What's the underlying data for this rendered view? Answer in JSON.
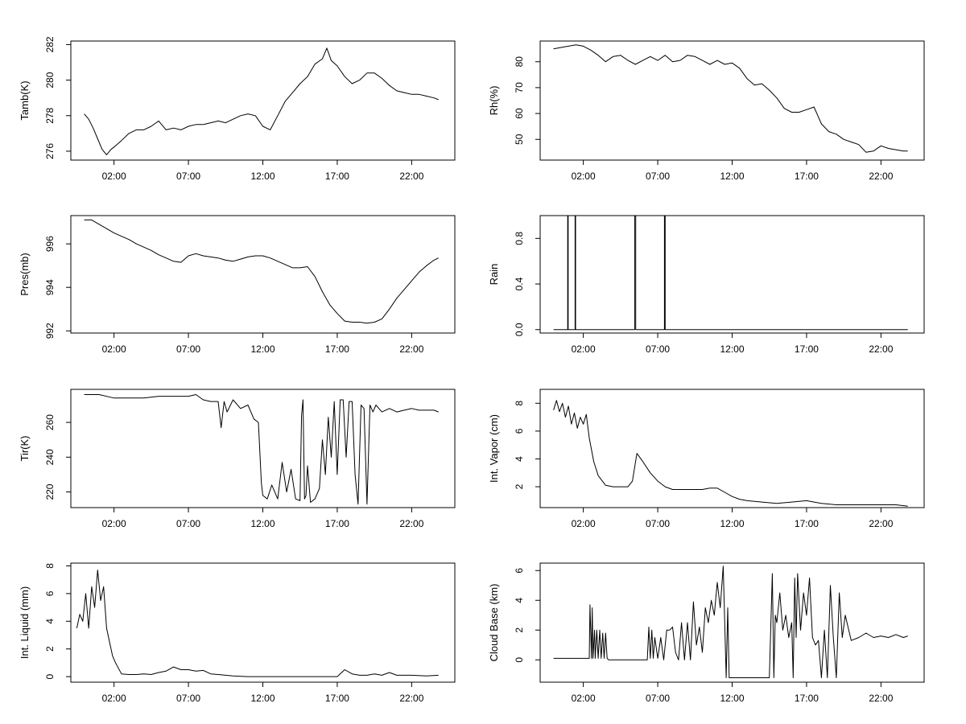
{
  "chart_data": [
    {
      "id": "tamb",
      "type": "line",
      "ylabel": "Tamb(K)",
      "x_ticks": [
        "02:00",
        "07:00",
        "12:00",
        "17:00",
        "22:00"
      ],
      "x_tick_hours": [
        2,
        7,
        12,
        17,
        22
      ],
      "xlim": [
        -0.9,
        24.9
      ],
      "y_ticks": [
        276,
        278,
        280,
        282
      ],
      "ylim": [
        275.5,
        282.2
      ],
      "series": [
        {
          "x": [
            0.0,
            0.3,
            0.6,
            0.9,
            1.2,
            1.5,
            1.8,
            2.1,
            2.5,
            3.0,
            3.5,
            4.0,
            4.5,
            5.0,
            5.5,
            6.0,
            6.5,
            7.0,
            7.5,
            8.0,
            8.5,
            9.0,
            9.5,
            10.0,
            10.5,
            11.0,
            11.5,
            12.0,
            12.5,
            13.0,
            13.5,
            14.0,
            14.5,
            15.0,
            15.5,
            16.0,
            16.3,
            16.6,
            17.0,
            17.5,
            18.0,
            18.5,
            19.0,
            19.5,
            20.0,
            20.5,
            21.0,
            21.5,
            22.0,
            22.5,
            23.0,
            23.5,
            23.8
          ],
          "values": [
            278.1,
            277.8,
            277.3,
            276.7,
            276.1,
            275.8,
            276.1,
            276.3,
            276.6,
            277.0,
            277.2,
            277.2,
            277.4,
            277.7,
            277.2,
            277.3,
            277.2,
            277.4,
            277.5,
            277.5,
            277.6,
            277.7,
            277.6,
            277.8,
            278.0,
            278.1,
            278.0,
            277.4,
            277.2,
            278.0,
            278.8,
            279.3,
            279.8,
            280.2,
            280.9,
            281.2,
            281.8,
            281.1,
            280.8,
            280.2,
            279.8,
            280.0,
            280.4,
            280.4,
            280.1,
            279.7,
            279.4,
            279.3,
            279.2,
            279.2,
            279.1,
            279.0,
            278.9
          ]
        }
      ]
    },
    {
      "id": "rh",
      "type": "line",
      "ylabel": "Rh(%)",
      "x_ticks": [
        "02:00",
        "07:00",
        "12:00",
        "17:00",
        "22:00"
      ],
      "x_tick_hours": [
        2,
        7,
        12,
        17,
        22
      ],
      "xlim": [
        -0.9,
        24.9
      ],
      "y_ticks": [
        50,
        60,
        70,
        80
      ],
      "ylim": [
        42,
        88
      ],
      "series": [
        {
          "x": [
            0.0,
            0.5,
            1.0,
            1.5,
            2.0,
            2.5,
            3.0,
            3.5,
            4.0,
            4.5,
            5.0,
            5.5,
            6.0,
            6.5,
            7.0,
            7.5,
            8.0,
            8.5,
            9.0,
            9.5,
            10.0,
            10.5,
            11.0,
            11.5,
            12.0,
            12.5,
            13.0,
            13.5,
            14.0,
            14.5,
            15.0,
            15.5,
            16.0,
            16.5,
            17.0,
            17.5,
            18.0,
            18.5,
            19.0,
            19.5,
            20.0,
            20.5,
            21.0,
            21.5,
            22.0,
            22.5,
            23.0,
            23.5,
            23.8
          ],
          "values": [
            85,
            85.5,
            86,
            86.5,
            86,
            84.5,
            82.5,
            80,
            82,
            82.5,
            80.5,
            79,
            80.5,
            82,
            80.5,
            82.5,
            80,
            80.5,
            82.5,
            82,
            80.5,
            79,
            80.5,
            79,
            79.5,
            77.5,
            73.5,
            71,
            71.5,
            69,
            66,
            62,
            60.5,
            60.5,
            61.5,
            62.5,
            56,
            53,
            52,
            50,
            49,
            48,
            45,
            45.5,
            47.5,
            46.5,
            46,
            45.5,
            45.5
          ]
        }
      ]
    },
    {
      "id": "pres",
      "type": "line",
      "ylabel": "Pres(mb)",
      "x_ticks": [
        "02:00",
        "07:00",
        "12:00",
        "17:00",
        "22:00"
      ],
      "x_tick_hours": [
        2,
        7,
        12,
        17,
        22
      ],
      "xlim": [
        -0.9,
        24.9
      ],
      "y_ticks": [
        992,
        994,
        996
      ],
      "ylim": [
        991.9,
        997.3
      ],
      "series": [
        {
          "x": [
            0.0,
            0.5,
            1.0,
            1.5,
            2.0,
            2.5,
            3.0,
            3.5,
            4.0,
            4.5,
            5.0,
            5.5,
            6.0,
            6.5,
            7.0,
            7.5,
            8.0,
            8.5,
            9.0,
            9.5,
            10.0,
            10.5,
            11.0,
            11.5,
            12.0,
            12.5,
            13.0,
            13.5,
            14.0,
            14.5,
            15.0,
            15.5,
            16.0,
            16.5,
            17.0,
            17.5,
            18.0,
            18.5,
            19.0,
            19.5,
            20.0,
            20.5,
            21.0,
            21.5,
            22.0,
            22.5,
            23.0,
            23.5,
            23.8
          ],
          "values": [
            997.1,
            997.1,
            996.9,
            996.7,
            996.5,
            996.35,
            996.2,
            996.0,
            995.85,
            995.7,
            995.5,
            995.35,
            995.2,
            995.15,
            995.45,
            995.55,
            995.45,
            995.4,
            995.35,
            995.25,
            995.2,
            995.3,
            995.4,
            995.45,
            995.45,
            995.35,
            995.2,
            995.05,
            994.9,
            994.9,
            994.95,
            994.5,
            993.8,
            993.2,
            992.8,
            992.45,
            992.4,
            992.4,
            992.35,
            992.4,
            992.55,
            993.0,
            993.5,
            993.9,
            994.3,
            994.7,
            995.0,
            995.25,
            995.35
          ]
        }
      ]
    },
    {
      "id": "rain",
      "type": "line",
      "ylabel": "Rain",
      "x_ticks": [
        "02:00",
        "07:00",
        "12:00",
        "17:00",
        "22:00"
      ],
      "x_tick_hours": [
        2,
        7,
        12,
        17,
        22
      ],
      "xlim": [
        -0.9,
        24.9
      ],
      "y_ticks": [
        "0.0",
        "0.4",
        "0.8"
      ],
      "y_tick_values": [
        0,
        0.4,
        0.8
      ],
      "ylim": [
        -0.03,
        1.0
      ],
      "series": [
        {
          "x": [
            0.0,
            0.95,
            0.95,
            0.98,
            0.98,
            1.45,
            1.45,
            1.48,
            1.48,
            5.45,
            5.45,
            5.52,
            5.52,
            7.45,
            7.45,
            7.5,
            7.5,
            23.8
          ],
          "values": [
            0,
            0,
            1,
            1,
            0,
            0,
            1,
            1,
            0,
            0,
            1,
            1,
            0,
            0,
            1,
            1,
            0,
            0
          ]
        }
      ]
    },
    {
      "id": "tir",
      "type": "line",
      "ylabel": "Tir(K)",
      "x_ticks": [
        "02:00",
        "07:00",
        "12:00",
        "17:00",
        "22:00"
      ],
      "x_tick_hours": [
        2,
        7,
        12,
        17,
        22
      ],
      "xlim": [
        -0.9,
        24.9
      ],
      "y_ticks": [
        220,
        240,
        260
      ],
      "ylim": [
        211,
        279
      ],
      "series": [
        {
          "x": [
            0.0,
            1.0,
            2.0,
            3.0,
            4.0,
            5.0,
            6.0,
            7.0,
            7.5,
            8.0,
            8.5,
            9.0,
            9.2,
            9.4,
            9.6,
            10.0,
            10.5,
            11.0,
            11.4,
            11.7,
            11.9,
            12.0,
            12.3,
            12.6,
            13.0,
            13.3,
            13.6,
            13.9,
            14.2,
            14.5,
            14.6,
            14.7,
            14.8,
            14.9,
            15.0,
            15.2,
            15.5,
            15.8,
            16.0,
            16.2,
            16.4,
            16.6,
            16.8,
            17.0,
            17.2,
            17.4,
            17.6,
            17.8,
            18.0,
            18.2,
            18.4,
            18.6,
            18.8,
            19.0,
            19.2,
            19.4,
            19.6,
            20.0,
            20.5,
            21.0,
            21.5,
            22.0,
            22.5,
            23.0,
            23.5,
            23.8
          ],
          "values": [
            276,
            276,
            274,
            274,
            274,
            275,
            275,
            275,
            276,
            273,
            272,
            272,
            257,
            272,
            266,
            273,
            268,
            270,
            262,
            260,
            225,
            218,
            216,
            224,
            216,
            237,
            220,
            233,
            216,
            215,
            264,
            273,
            216,
            218,
            235,
            214,
            216,
            222,
            250,
            230,
            263,
            240,
            272,
            230,
            273,
            273,
            240,
            272,
            272,
            230,
            213,
            270,
            268,
            213,
            270,
            266,
            270,
            266,
            268,
            266,
            267,
            268,
            267,
            267,
            267,
            266
          ]
        }
      ]
    },
    {
      "id": "vapor",
      "type": "line",
      "ylabel": "Int. Vapor (cm)",
      "x_ticks": [
        "02:00",
        "07:00",
        "12:00",
        "17:00",
        "22:00"
      ],
      "x_tick_hours": [
        2,
        7,
        12,
        17,
        22
      ],
      "xlim": [
        -0.9,
        24.9
      ],
      "y_ticks": [
        2,
        4,
        6,
        8
      ],
      "ylim": [
        0.5,
        9.0
      ],
      "series": [
        {
          "x": [
            0.0,
            0.2,
            0.4,
            0.6,
            0.8,
            1.0,
            1.2,
            1.4,
            1.6,
            1.8,
            2.0,
            2.2,
            2.4,
            2.7,
            3.0,
            3.5,
            4.0,
            4.5,
            5.0,
            5.3,
            5.6,
            6.0,
            6.5,
            7.0,
            7.5,
            8.0,
            9.0,
            10.0,
            10.5,
            11.0,
            11.5,
            12.0,
            12.5,
            13.0,
            14.0,
            15.0,
            16.0,
            17.0,
            17.5,
            18.0,
            19.0,
            20.0,
            21.0,
            22.0,
            23.0,
            23.8
          ],
          "values": [
            7.5,
            8.2,
            7.4,
            8.0,
            7.0,
            7.8,
            6.5,
            7.3,
            6.2,
            7.0,
            6.5,
            7.2,
            5.5,
            3.8,
            2.8,
            2.1,
            2.0,
            2.0,
            2.0,
            2.4,
            4.4,
            3.8,
            3.0,
            2.4,
            2.0,
            1.8,
            1.8,
            1.8,
            1.9,
            1.9,
            1.6,
            1.3,
            1.1,
            1.0,
            0.9,
            0.8,
            0.9,
            1.0,
            0.9,
            0.8,
            0.7,
            0.7,
            0.7,
            0.7,
            0.7,
            0.6
          ]
        }
      ]
    },
    {
      "id": "liquid",
      "type": "line",
      "ylabel": "Int. Liquid (mm)",
      "x_ticks": [
        "02:00",
        "07:00",
        "12:00",
        "17:00",
        "22:00"
      ],
      "x_tick_hours": [
        2,
        7,
        12,
        17,
        22
      ],
      "xlim": [
        -0.9,
        24.9
      ],
      "y_ticks": [
        0,
        2,
        4,
        6,
        8
      ],
      "ylim": [
        -0.4,
        8.2
      ],
      "series": [
        {
          "x": [
            -0.5,
            -0.3,
            -0.1,
            0.1,
            0.3,
            0.5,
            0.7,
            0.9,
            1.1,
            1.3,
            1.5,
            1.7,
            1.9,
            2.1,
            2.3,
            2.5,
            3.0,
            3.5,
            4.0,
            4.5,
            5.0,
            5.5,
            6.0,
            6.5,
            7.0,
            7.5,
            8.0,
            8.5,
            9.0,
            9.5,
            10.0,
            11.0,
            12.0,
            13.0,
            14.0,
            15.0,
            16.0,
            17.0,
            17.5,
            18.0,
            18.5,
            19.0,
            19.5,
            20.0,
            20.5,
            21.0,
            22.0,
            23.0,
            23.8
          ],
          "values": [
            3.5,
            4.5,
            4.0,
            6.0,
            3.5,
            6.5,
            5.0,
            7.7,
            5.5,
            6.5,
            3.5,
            2.5,
            1.5,
            1.0,
            0.6,
            0.2,
            0.15,
            0.15,
            0.2,
            0.15,
            0.3,
            0.4,
            0.7,
            0.5,
            0.5,
            0.4,
            0.45,
            0.2,
            0.15,
            0.1,
            0.05,
            0.0,
            0.0,
            0.0,
            0.0,
            0.0,
            0.0,
            0.0,
            0.5,
            0.2,
            0.1,
            0.1,
            0.2,
            0.1,
            0.3,
            0.1,
            0.1,
            0.05,
            0.1
          ]
        }
      ]
    },
    {
      "id": "cloud",
      "type": "line",
      "ylabel": "Cloud Base (km)",
      "x_ticks": [
        "02:00",
        "07:00",
        "12:00",
        "17:00",
        "22:00"
      ],
      "x_tick_hours": [
        2,
        7,
        12,
        17,
        22
      ],
      "xlim": [
        -0.9,
        24.9
      ],
      "y_ticks": [
        0,
        2,
        4,
        6
      ],
      "ylim": [
        -1.5,
        6.5
      ],
      "series": [
        {
          "x": [
            0.0,
            1.0,
            2.0,
            2.4,
            2.45,
            2.55,
            2.6,
            2.65,
            2.75,
            2.8,
            2.9,
            3.0,
            3.1,
            3.2,
            3.3,
            3.4,
            3.5,
            3.6,
            3.7,
            4.0,
            5.0,
            6.0,
            6.3,
            6.4,
            6.5,
            6.6,
            6.7,
            6.8,
            7.0,
            7.2,
            7.4,
            7.6,
            7.8,
            8.0,
            8.2,
            8.4,
            8.6,
            8.8,
            9.0,
            9.2,
            9.4,
            9.6,
            9.8,
            10.0,
            10.2,
            10.4,
            10.6,
            10.8,
            11.0,
            11.2,
            11.4,
            11.6,
            11.7,
            11.8,
            11.9,
            12.0,
            12.5,
            13.0,
            13.5,
            14.0,
            14.5,
            14.7,
            14.8,
            14.9,
            15.0,
            15.2,
            15.4,
            15.6,
            15.8,
            16.0,
            16.1,
            16.2,
            16.3,
            16.4,
            16.6,
            16.8,
            17.0,
            17.2,
            17.4,
            17.6,
            17.8,
            18.0,
            18.2,
            18.4,
            18.6,
            18.8,
            19.0,
            19.2,
            19.4,
            19.6,
            20.0,
            20.5,
            21.0,
            21.5,
            22.0,
            22.5,
            23.0,
            23.5,
            23.8
          ],
          "values": [
            0.1,
            0.1,
            0.1,
            0.1,
            3.7,
            0.1,
            3.5,
            0.1,
            2.0,
            0.1,
            2.0,
            0.1,
            2.0,
            0.1,
            1.8,
            0.1,
            1.8,
            0.1,
            0.0,
            0.0,
            0.0,
            0.0,
            0.0,
            2.2,
            0.1,
            2.0,
            0.1,
            1.5,
            0.1,
            1.5,
            0.0,
            2.0,
            2.0,
            2.2,
            0.5,
            0.0,
            2.5,
            0.0,
            2.5,
            0.0,
            3.9,
            1.0,
            2.2,
            0.5,
            3.5,
            2.5,
            4.0,
            3.0,
            5.2,
            3.5,
            6.3,
            -1.2,
            3.5,
            -1.2,
            -1.2,
            -1.2,
            -1.2,
            -1.2,
            -1.2,
            -1.2,
            -1.2,
            5.8,
            -1.2,
            3.0,
            2.5,
            4.5,
            2.0,
            3.0,
            1.5,
            2.5,
            -1.2,
            5.5,
            1.5,
            5.8,
            2.0,
            4.5,
            3.0,
            5.5,
            1.5,
            1.0,
            1.3,
            -1.2,
            2.0,
            -1.2,
            5.0,
            1.5,
            -1.2,
            4.5,
            1.5,
            3.0,
            1.3,
            1.5,
            1.8,
            1.5,
            1.6,
            1.5,
            1.7,
            1.5,
            1.6
          ]
        }
      ]
    }
  ]
}
